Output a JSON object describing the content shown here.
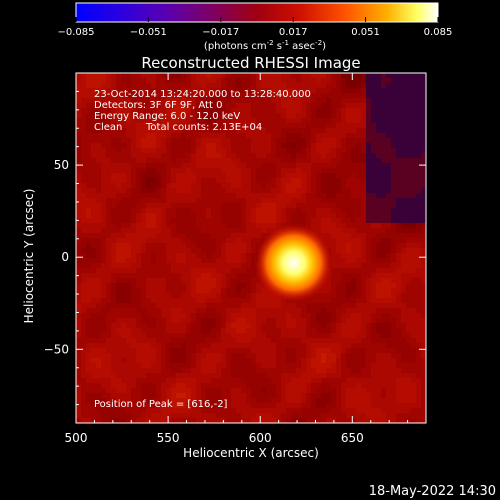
{
  "chart_data": {
    "type": "heatmap",
    "title": "Reconstructed RHESSI Image",
    "xlabel": "Heliocentric X (arcsec)",
    "ylabel": "Heliocentric Y (arcsec)",
    "xlim": [
      500,
      690
    ],
    "ylim": [
      -90,
      100
    ],
    "xticks": [
      500,
      550,
      600,
      650
    ],
    "yticks": [
      50,
      0,
      -50
    ],
    "colorbar": {
      "min": -0.085,
      "max": 0.085,
      "ticks": [
        "-0.085",
        "-0.051",
        "-0.017",
        "0.017",
        "0.051",
        "0.085"
      ],
      "unit_text": "(photons cm",
      "unit_sup1": "-2",
      "unit_mid": " s",
      "unit_sup2": "-1",
      "unit_mid2": " asec",
      "unit_sup3": "-2",
      "unit_end": ")",
      "colormap": [
        "#0000ff",
        "#3a00c8",
        "#6a0090",
        "#8a0040",
        "#b00000",
        "#e02000",
        "#ff6000",
        "#ffb000",
        "#ffff80",
        "#ffffff"
      ]
    },
    "annotations": {
      "line1": "23-Oct-2014 13:24:20.000 to 13:28:40.000",
      "line2": "Detectors: 3F 6F 9F, Att 0",
      "line3": "Energy Range: 6.0 - 12.0 keV",
      "line4a": "Clean",
      "line4b": "Total counts: 2.13E+04",
      "peak": "Position of Peak = [616,-2]"
    },
    "peak": {
      "x": 616,
      "y": -2,
      "sigma": 5.5
    },
    "background_level": 0.012
  },
  "footer": {
    "timestamp": "18-May-2022 14:30"
  }
}
